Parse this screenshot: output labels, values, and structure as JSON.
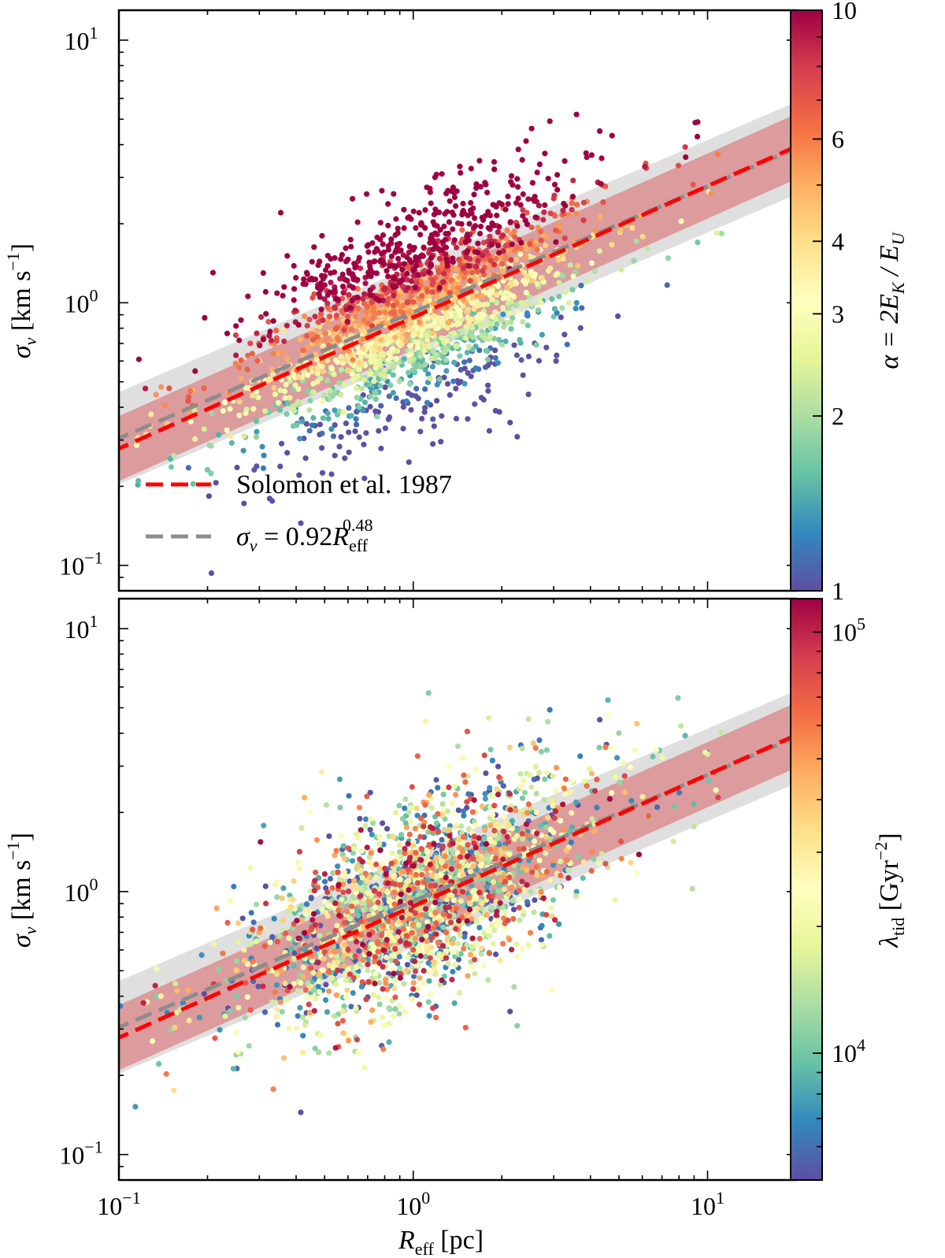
{
  "chart_data": [
    {
      "type": "scatter",
      "panel": "top",
      "xscale": "log",
      "yscale": "log",
      "xlim": [
        0.1,
        20
      ],
      "ylim": [
        0.08,
        13
      ],
      "ylabel": "σ_v [km s^-1]",
      "y_ticks": [
        {
          "value": 0.1,
          "mantissa": "10",
          "exp": "−1"
        },
        {
          "value": 1,
          "mantissa": "10",
          "exp": "0"
        },
        {
          "value": 10,
          "mantissa": "10",
          "exp": "1"
        }
      ],
      "series": [
        {
          "name": "Solomon et al. 1987",
          "kind": "line",
          "style": "dashed",
          "color": "#ff0000",
          "relation": {
            "coef": 0.88,
            "exp": 0.5
          },
          "band_factor": 1.33,
          "band_color": "#d9585b"
        },
        {
          "name": "σ_v = 0.92R_eff^0.48",
          "kind": "line",
          "style": "dashed",
          "color": "#8c8c8c",
          "relation": {
            "coef": 0.92,
            "exp": 0.48
          },
          "band_factor": 1.5,
          "band_color": "#d9d9d9"
        },
        {
          "name": "clouds",
          "kind": "points",
          "n": 2200,
          "seed": 11,
          "color_variable": "alpha",
          "description": "points colored by virial parameter, lower alpha below relation"
        }
      ],
      "colorbar": {
        "label": "α = 2E_K / E_U",
        "scale": "log",
        "range": [
          1,
          10
        ],
        "ticks": [
          {
            "value": 1,
            "label": "1"
          },
          {
            "value": 2,
            "label": "2"
          },
          {
            "value": 3,
            "label": "3"
          },
          {
            "value": 4,
            "label": "4"
          },
          {
            "value": 6,
            "label": "6"
          },
          {
            "value": 10,
            "label": "10"
          }
        ]
      },
      "legend": {
        "position": "lower-left",
        "entries": [
          {
            "label": "Solomon et al. 1987",
            "color": "#ff0000"
          },
          {
            "label": "σ_v = 0.92R_eff^0.48",
            "color": "#8c8c8c",
            "parts": {
              "prefix": "σ",
              "sub_v": "v",
              "mid": " = 0.92",
              "R": "R",
              "sub_eff": "eff",
              "sup": "0.48"
            }
          }
        ]
      }
    },
    {
      "type": "scatter",
      "panel": "bottom",
      "xscale": "log",
      "yscale": "log",
      "xlim": [
        0.1,
        20
      ],
      "ylim": [
        0.08,
        13
      ],
      "xlabel": "R_eff [pc]",
      "ylabel": "σ_v [km s^-1]",
      "x_ticks": [
        {
          "value": 0.1,
          "mantissa": "10",
          "exp": "−1"
        },
        {
          "value": 1,
          "mantissa": "10",
          "exp": "0"
        },
        {
          "value": 10,
          "mantissa": "10",
          "exp": "1"
        }
      ],
      "y_ticks": [
        {
          "value": 0.1,
          "mantissa": "10",
          "exp": "−1"
        },
        {
          "value": 1,
          "mantissa": "10",
          "exp": "0"
        },
        {
          "value": 10,
          "mantissa": "10",
          "exp": "1"
        }
      ],
      "series": [
        {
          "name": "Solomon et al. 1987",
          "kind": "line",
          "style": "dashed",
          "color": "#ff0000",
          "relation": {
            "coef": 0.88,
            "exp": 0.5
          },
          "band_factor": 1.33,
          "band_color": "#d9585b"
        },
        {
          "name": "σ_v = 0.92R_eff^0.48",
          "kind": "line",
          "style": "dashed",
          "color": "#8c8c8c",
          "relation": {
            "coef": 0.92,
            "exp": 0.48
          },
          "band_factor": 1.5,
          "band_color": "#d9d9d9"
        },
        {
          "name": "clouds",
          "kind": "points",
          "n": 2200,
          "seed": 11,
          "color_variable": "lambda_tid",
          "description": "points colored by tidal strength"
        }
      ],
      "colorbar": {
        "label": "λ_tid [Gyr^-2]",
        "scale": "log",
        "range": [
          5000,
          120000
        ],
        "ticks": [
          {
            "value": 10000,
            "mantissa": "10",
            "exp": "4"
          },
          {
            "value": 100000,
            "mantissa": "10",
            "exp": "5"
          }
        ]
      }
    }
  ],
  "labels": {
    "sigma": "σ",
    "sub_v": "v",
    "units_open": " [km s",
    "units_exp": "−1",
    "units_close": "]",
    "alpha_label": "α = 2E",
    "alpha_sub_k": "K",
    "alpha_mid": " / E",
    "alpha_sub_u": "U",
    "lambda": "λ",
    "lambda_sub": "tid",
    "lambda_units_open": " [Gyr",
    "lambda_units_exp": "−2",
    "lambda_units_close": "]",
    "x_R": "R",
    "x_sub": "eff",
    "x_units": " [pc]"
  },
  "colors": {
    "colormap": [
      "#5e4fa2",
      "#3288bd",
      "#66c2a5",
      "#abdda4",
      "#e6f598",
      "#ffffbf",
      "#fee08b",
      "#fdae61",
      "#f46d43",
      "#d53e4f",
      "#9e0142"
    ]
  }
}
